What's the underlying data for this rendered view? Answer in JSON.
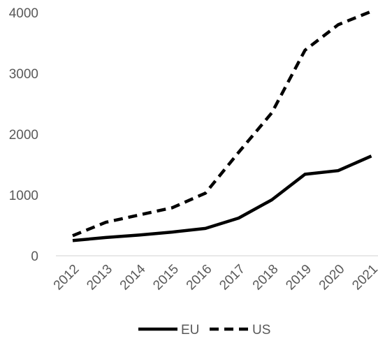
{
  "chart_data": {
    "type": "line",
    "title": "",
    "xlabel": "",
    "ylabel": "",
    "categories": [
      "2012",
      "2013",
      "2014",
      "2015",
      "2016",
      "2017",
      "2018",
      "2019",
      "2020",
      "2021"
    ],
    "ylim": [
      0,
      4000
    ],
    "yticks": [
      "0",
      "1000",
      "2000",
      "3000",
      "4000"
    ],
    "grid": false,
    "legend_position": "bottom",
    "series": [
      {
        "name": "EU",
        "style": "solid",
        "color": "#000000",
        "values": [
          250,
          300,
          340,
          390,
          450,
          620,
          920,
          1340,
          1400,
          1640
        ]
      },
      {
        "name": "US",
        "style": "dashed",
        "color": "#000000",
        "values": [
          330,
          550,
          670,
          790,
          1030,
          1700,
          2350,
          3380,
          3800,
          4020
        ]
      }
    ]
  }
}
